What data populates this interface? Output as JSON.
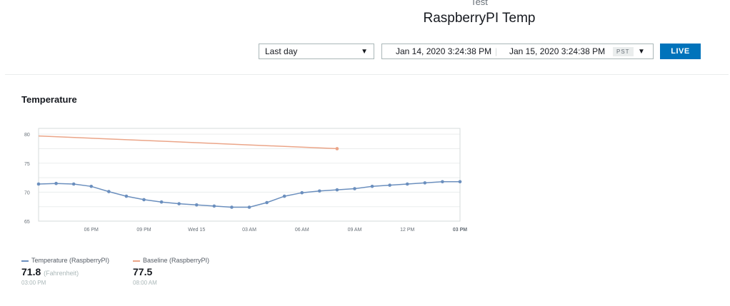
{
  "header": {
    "supertitle": "Test",
    "title": "RaspberryPI Temp"
  },
  "toolbar": {
    "range_label": "Last day",
    "start_date": "Jan 14, 2020 3:24:38 PM",
    "end_date": "Jan 15, 2020 3:24:38 PM",
    "timezone": "PST",
    "live_label": "LIVE"
  },
  "panel": {
    "title": "Temperature"
  },
  "chart_data": {
    "type": "line",
    "ylim": [
      65,
      81
    ],
    "y_ticks": [
      65,
      70,
      75,
      80
    ],
    "x_ticks": [
      "06 PM",
      "09 PM",
      "Wed 15",
      "03 AM",
      "06 AM",
      "09 AM",
      "12 PM",
      "03 PM"
    ],
    "grid": true,
    "colors": {
      "Temperature (RaspberryPI)": "#6b8fbe",
      "Baseline (RaspberryPI)": "#eba588"
    },
    "series": [
      {
        "name": "Temperature (RaspberryPI)",
        "x": [
          15.0,
          16.0,
          17.0,
          18.0,
          19.0,
          20.0,
          21.0,
          22.0,
          23.0,
          24.0,
          25.0,
          26.0,
          27.0,
          28.0,
          29.0,
          30.0,
          31.0,
          32.0,
          33.0,
          34.0,
          35.0,
          36.0,
          37.0,
          38.0,
          39.0
        ],
        "values": [
          71.4,
          71.5,
          71.4,
          71.0,
          70.1,
          69.3,
          68.7,
          68.3,
          68.0,
          67.8,
          67.6,
          67.4,
          67.4,
          68.2,
          69.3,
          69.9,
          70.2,
          70.4,
          70.6,
          71.0,
          71.2,
          71.4,
          71.6,
          71.8,
          71.8
        ]
      },
      {
        "name": "Baseline (RaspberryPI)",
        "x": [
          15.0,
          32.0
        ],
        "values": [
          79.7,
          77.5
        ]
      }
    ]
  },
  "legend": [
    {
      "label": "Temperature (RaspberryPI)",
      "value": "71.8",
      "unit": "(Fahrenheit)",
      "time": "03:00 PM",
      "color": "#6b8fbe"
    },
    {
      "label": "Baseline (RaspberryPI)",
      "value": "77.5",
      "unit": "",
      "time": "08:00 AM",
      "color": "#eba588"
    }
  ]
}
